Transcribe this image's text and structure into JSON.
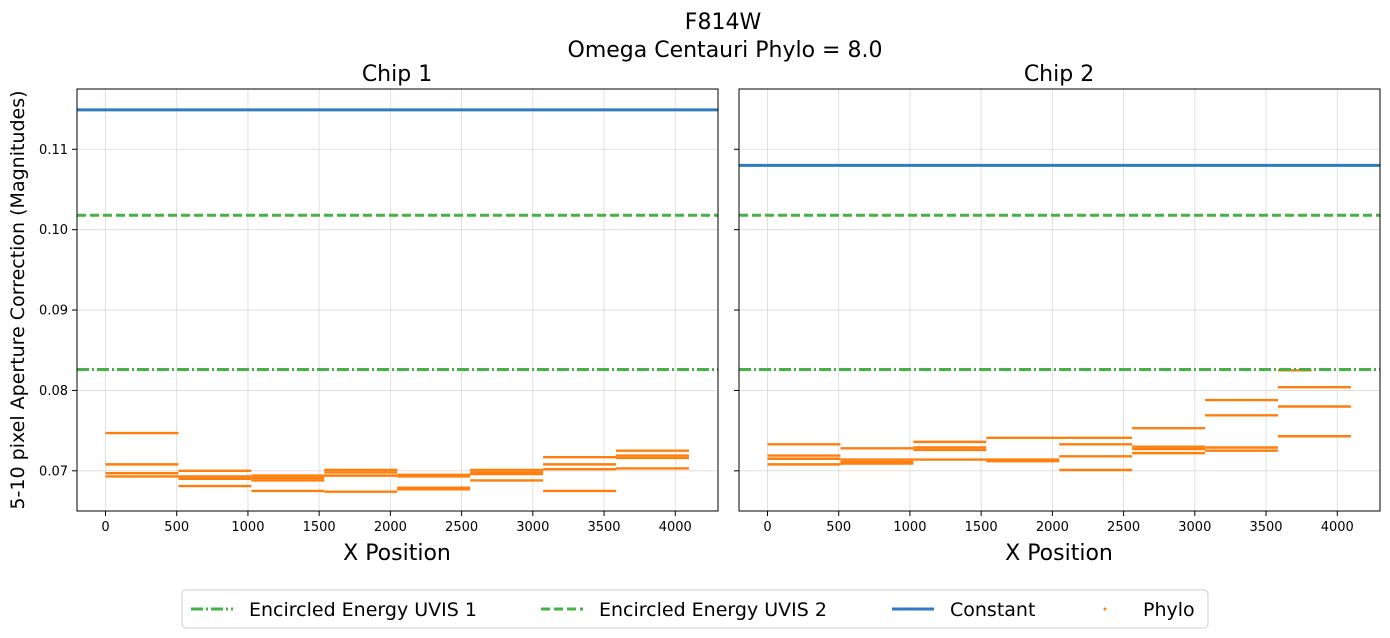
{
  "figure": {
    "title_line1": "F814W",
    "title_line2": "Omega Centauri Phylo = 8.0",
    "ylabel": "5-10 pixel Aperture Correction (Magnitudes)"
  },
  "colors": {
    "ee": "#44b244",
    "constant": "#2f7bbf",
    "phylo": "#ff7f0e",
    "grid": "#d9d9d9"
  },
  "legend": {
    "items": [
      {
        "label": "Encircled Energy UVIS 1",
        "style": "dashdot"
      },
      {
        "label": "Encircled Energy UVIS 2",
        "style": "dashed"
      },
      {
        "label": "Constant",
        "style": "solid"
      },
      {
        "label": "Phylo",
        "style": "marker"
      }
    ]
  },
  "chart_data": [
    {
      "type": "line",
      "title": "Chip 1",
      "xlabel": "X Position",
      "ylabel": "5-10 pixel Aperture Correction (Magnitudes)",
      "xlim": [
        -200,
        4300
      ],
      "ylim": [
        0.065,
        0.1175
      ],
      "xticks": [
        0,
        500,
        1000,
        1500,
        2000,
        2500,
        3000,
        3500,
        4000
      ],
      "yticks": [
        0.07,
        0.08,
        0.09,
        0.1,
        0.11
      ],
      "ytick_labels": [
        "0.07",
        "0.08",
        "0.09",
        "0.10",
        "0.11"
      ],
      "grid": true,
      "reference_lines": [
        {
          "name": "Encircled Energy UVIS 1",
          "y": 0.0826
        },
        {
          "name": "Encircled Energy UVIS 2",
          "y": 0.1018
        },
        {
          "name": "Constant",
          "y": 0.1149
        }
      ],
      "phylo_segments": [
        {
          "x0": 0,
          "x1": 512,
          "y": 0.0747
        },
        {
          "x0": 0,
          "x1": 512,
          "y": 0.0708
        },
        {
          "x0": 0,
          "x1": 512,
          "y": 0.0697
        },
        {
          "x0": 0,
          "x1": 512,
          "y": 0.0693
        },
        {
          "x0": 512,
          "x1": 1024,
          "y": 0.07
        },
        {
          "x0": 512,
          "x1": 1024,
          "y": 0.0693
        },
        {
          "x0": 512,
          "x1": 1024,
          "y": 0.069
        },
        {
          "x0": 512,
          "x1": 1024,
          "y": 0.0681
        },
        {
          "x0": 1024,
          "x1": 1536,
          "y": 0.0694
        },
        {
          "x0": 1024,
          "x1": 1536,
          "y": 0.0691
        },
        {
          "x0": 1024,
          "x1": 1536,
          "y": 0.0688
        },
        {
          "x0": 1024,
          "x1": 1536,
          "y": 0.0675
        },
        {
          "x0": 1536,
          "x1": 2048,
          "y": 0.0701
        },
        {
          "x0": 1536,
          "x1": 2048,
          "y": 0.0698
        },
        {
          "x0": 1536,
          "x1": 2048,
          "y": 0.0694
        },
        {
          "x0": 1536,
          "x1": 2048,
          "y": 0.0674
        },
        {
          "x0": 2048,
          "x1": 2560,
          "y": 0.0695
        },
        {
          "x0": 2048,
          "x1": 2560,
          "y": 0.0693
        },
        {
          "x0": 2048,
          "x1": 2560,
          "y": 0.0679
        },
        {
          "x0": 2048,
          "x1": 2560,
          "y": 0.0677
        },
        {
          "x0": 2560,
          "x1": 3072,
          "y": 0.0701
        },
        {
          "x0": 2560,
          "x1": 3072,
          "y": 0.0698
        },
        {
          "x0": 2560,
          "x1": 3072,
          "y": 0.0696
        },
        {
          "x0": 2560,
          "x1": 3072,
          "y": 0.0688
        },
        {
          "x0": 3072,
          "x1": 3584,
          "y": 0.0717
        },
        {
          "x0": 3072,
          "x1": 3584,
          "y": 0.0708
        },
        {
          "x0": 3072,
          "x1": 3584,
          "y": 0.0702
        },
        {
          "x0": 3072,
          "x1": 3584,
          "y": 0.0675
        },
        {
          "x0": 3584,
          "x1": 4096,
          "y": 0.0725
        },
        {
          "x0": 3584,
          "x1": 4096,
          "y": 0.0719
        },
        {
          "x0": 3584,
          "x1": 4096,
          "y": 0.0716
        },
        {
          "x0": 3584,
          "x1": 4096,
          "y": 0.0703
        }
      ]
    },
    {
      "type": "line",
      "title": "Chip 2",
      "xlabel": "X Position",
      "xlim": [
        -200,
        4300
      ],
      "ylim": [
        0.065,
        0.1175
      ],
      "xticks": [
        0,
        500,
        1000,
        1500,
        2000,
        2500,
        3000,
        3500,
        4000
      ],
      "grid": true,
      "shared_y": true,
      "reference_lines": [
        {
          "name": "Encircled Energy UVIS 1",
          "y": 0.0826
        },
        {
          "name": "Encircled Energy UVIS 2",
          "y": 0.1018
        },
        {
          "name": "Constant",
          "y": 0.108
        }
      ],
      "phylo_segments": [
        {
          "x0": 0,
          "x1": 512,
          "y": 0.0733
        },
        {
          "x0": 0,
          "x1": 512,
          "y": 0.0719
        },
        {
          "x0": 0,
          "x1": 512,
          "y": 0.0715
        },
        {
          "x0": 0,
          "x1": 512,
          "y": 0.0708
        },
        {
          "x0": 512,
          "x1": 1024,
          "y": 0.0728
        },
        {
          "x0": 512,
          "x1": 1024,
          "y": 0.0714
        },
        {
          "x0": 512,
          "x1": 1024,
          "y": 0.0711
        },
        {
          "x0": 512,
          "x1": 1024,
          "y": 0.0709
        },
        {
          "x0": 1024,
          "x1": 1536,
          "y": 0.0736
        },
        {
          "x0": 1024,
          "x1": 1536,
          "y": 0.0729
        },
        {
          "x0": 1024,
          "x1": 1536,
          "y": 0.0726
        },
        {
          "x0": 1024,
          "x1": 1536,
          "y": 0.0714
        },
        {
          "x0": 1536,
          "x1": 2048,
          "y": 0.0741
        },
        {
          "x0": 1536,
          "x1": 2048,
          "y": 0.0714
        },
        {
          "x0": 1536,
          "x1": 2048,
          "y": 0.0712
        },
        {
          "x0": 2048,
          "x1": 2560,
          "y": 0.0741
        },
        {
          "x0": 2048,
          "x1": 2560,
          "y": 0.0733
        },
        {
          "x0": 2048,
          "x1": 2560,
          "y": 0.0718
        },
        {
          "x0": 2048,
          "x1": 2560,
          "y": 0.0701
        },
        {
          "x0": 2560,
          "x1": 3072,
          "y": 0.0753
        },
        {
          "x0": 2560,
          "x1": 3072,
          "y": 0.073
        },
        {
          "x0": 2560,
          "x1": 3072,
          "y": 0.0727
        },
        {
          "x0": 2560,
          "x1": 3072,
          "y": 0.0722
        },
        {
          "x0": 3072,
          "x1": 3584,
          "y": 0.0788
        },
        {
          "x0": 3072,
          "x1": 3584,
          "y": 0.0769
        },
        {
          "x0": 3072,
          "x1": 3584,
          "y": 0.0729
        },
        {
          "x0": 3072,
          "x1": 3584,
          "y": 0.0725
        },
        {
          "x0": 3584,
          "x1": 3820,
          "y": 0.0825
        },
        {
          "x0": 3584,
          "x1": 4096,
          "y": 0.0804
        },
        {
          "x0": 3584,
          "x1": 4096,
          "y": 0.078
        },
        {
          "x0": 3584,
          "x1": 4096,
          "y": 0.0743
        }
      ]
    }
  ]
}
